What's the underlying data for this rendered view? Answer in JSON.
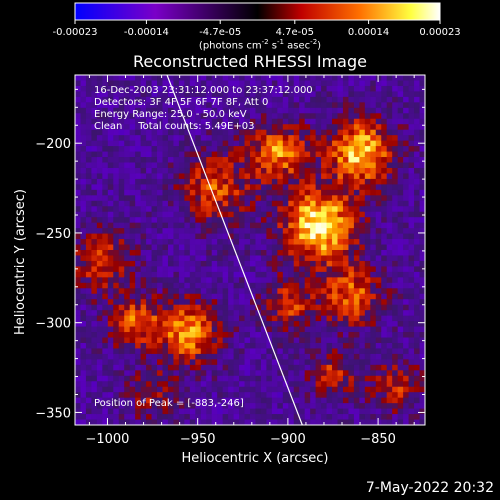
{
  "colorbar": {
    "ticks": [
      "-0.00023",
      "-0.00014",
      "-4.7e-05",
      "4.7e-05",
      "0.00014",
      "0.00023"
    ],
    "tick_values": [
      -0.00023,
      -0.00014,
      -4.7e-05,
      4.7e-05,
      0.00014,
      0.00023
    ],
    "range": [
      -0.00023,
      0.00023
    ],
    "unit_main": "(photons cm",
    "unit_sup1": "-2",
    "unit_mid": " s",
    "unit_sup2": "-1",
    "unit_end": " asec",
    "unit_sup3": "-2",
    "unit_close": ")",
    "colors": [
      "#0000ff",
      "#7a00c8",
      "#000000",
      "#d00000",
      "#ff8000",
      "#ffff40",
      "#ffffff"
    ]
  },
  "annotations": {
    "line1": "16-Dec-2003 23:31:12.000 to 23:37:12.000",
    "line2": "Detectors: 3F 4F 5F 6F 7F 8F, Att 0",
    "line3": "Energy Range: 25.0 - 50.0 keV",
    "line4": "Clean     Total counts: 5.49E+03",
    "peak": "Position of Peak = [-883,-246]"
  },
  "timestamp": "7-May-2022 20:32",
  "chart_data": {
    "type": "heatmap",
    "title": "Reconstructed RHESSI Image",
    "xlabel": "Heliocentric X (arcsec)",
    "ylabel": "Heliocentric Y (arcsec)",
    "xlim": [
      -1018,
      -824
    ],
    "ylim": [
      -357,
      -162
    ],
    "x_ticks": [
      -1000,
      -950,
      -900,
      -850
    ],
    "x_tick_labels": [
      "−1000",
      "−950",
      "−900",
      "−850"
    ],
    "y_ticks": [
      -200,
      -250,
      -300,
      -350
    ],
    "y_tick_labels": [
      "−200",
      "−250",
      "−300",
      "−350"
    ],
    "peak_position": [
      -883,
      -246
    ],
    "sources": [
      {
        "x": -883,
        "y": -246,
        "amp": 1.0,
        "sigma": 14
      },
      {
        "x": -860,
        "y": -205,
        "amp": 0.85,
        "sigma": 13
      },
      {
        "x": -905,
        "y": -205,
        "amp": 0.7,
        "sigma": 11
      },
      {
        "x": -940,
        "y": -225,
        "amp": 0.55,
        "sigma": 14
      },
      {
        "x": -865,
        "y": -285,
        "amp": 0.6,
        "sigma": 12
      },
      {
        "x": -900,
        "y": -290,
        "amp": 0.5,
        "sigma": 10
      },
      {
        "x": -955,
        "y": -305,
        "amp": 0.75,
        "sigma": 12
      },
      {
        "x": -985,
        "y": -300,
        "amp": 0.6,
        "sigma": 10
      },
      {
        "x": -1003,
        "y": -265,
        "amp": 0.55,
        "sigma": 12
      },
      {
        "x": -975,
        "y": -340,
        "amp": 0.35,
        "sigma": 10
      },
      {
        "x": -840,
        "y": -335,
        "amp": 0.45,
        "sigma": 10
      },
      {
        "x": -875,
        "y": -330,
        "amp": 0.5,
        "sigma": 9
      }
    ],
    "limb_line": [
      [
        -967,
        -162
      ],
      [
        -892,
        -357
      ]
    ],
    "grid": false
  }
}
